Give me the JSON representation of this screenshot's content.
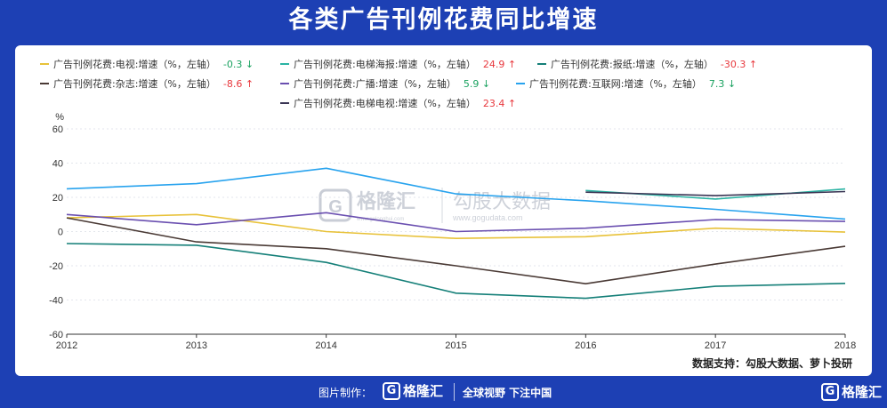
{
  "title": "各类广告刊例花费同比增速",
  "source": "数据支持：勾股大数据、萝卜投研",
  "footer": {
    "made_by": "图片制作：",
    "logo_text": "格隆汇",
    "logo_mark": "G",
    "slogan": "全球视野 下注中国"
  },
  "watermark": {
    "logo_text": "格隆汇",
    "sub_text": "www.gelonghui.com",
    "logo_mark": "G",
    "brand2": "勾股大数据",
    "brand2_url": "www.gogudata.com"
  },
  "colors": {
    "tv": "#e8c23a",
    "elevator_poster": "#2ab3a3",
    "newspaper": "#147f78",
    "magazine": "#4a3a35",
    "radio": "#6a4fb0",
    "internet": "#28a3ee",
    "elevator_tv": "#3a3554"
  },
  "chart_data": {
    "type": "line",
    "x": [
      "2012",
      "2013",
      "2014",
      "2015",
      "2016",
      "2017",
      "2018"
    ],
    "ylabel": "%",
    "ylim": [
      -60,
      60
    ],
    "yticks": [
      "60",
      "40",
      "20",
      "0",
      "-20",
      "-40",
      "-60"
    ],
    "grid": true,
    "legend_position": "top",
    "series": [
      {
        "key": "tv",
        "name": "广告刊例花费:电视:增速（%，左轴）",
        "latest": "-0.3",
        "dir": "down",
        "arrow": "↓",
        "values": [
          8,
          10,
          0,
          -4,
          -3,
          2,
          -0.3
        ]
      },
      {
        "key": "elevator_poster",
        "name": "广告刊例花费:电梯海报:增速（%，左轴）",
        "latest": "24.9",
        "dir": "up",
        "arrow": "↑",
        "values": [
          null,
          null,
          null,
          null,
          24,
          19,
          24.9
        ]
      },
      {
        "key": "newspaper",
        "name": "广告刊例花费:报纸:增速（%，左轴）",
        "latest": "-30.3",
        "dir": "up",
        "arrow": "↑",
        "values": [
          -7,
          -8,
          -18,
          -36,
          -39,
          -32,
          -30.3
        ]
      },
      {
        "key": "magazine",
        "name": "广告刊例花费:杂志:增速（%，左轴）",
        "latest": "-8.6",
        "dir": "up",
        "arrow": "↑",
        "values": [
          8,
          -6,
          -10,
          -20,
          -30.5,
          -19,
          -8.6
        ]
      },
      {
        "key": "radio",
        "name": "广告刊例花费:广播:增速（%，左轴）",
        "latest": "5.9",
        "dir": "down",
        "arrow": "↓",
        "values": [
          10,
          4,
          11,
          0,
          2,
          7,
          5.9
        ]
      },
      {
        "key": "internet",
        "name": "广告刊例花费:互联网:增速（%，左轴）",
        "latest": "7.3",
        "dir": "down",
        "arrow": "↓",
        "values": [
          25,
          28,
          37,
          22,
          18,
          13,
          7.3
        ]
      },
      {
        "key": "elevator_tv",
        "name": "广告刊例花费:电梯电视:增速（%，左轴）",
        "latest": "23.4",
        "dir": "up",
        "arrow": "↑",
        "values": [
          null,
          null,
          null,
          null,
          23,
          21,
          23.4
        ]
      }
    ]
  }
}
